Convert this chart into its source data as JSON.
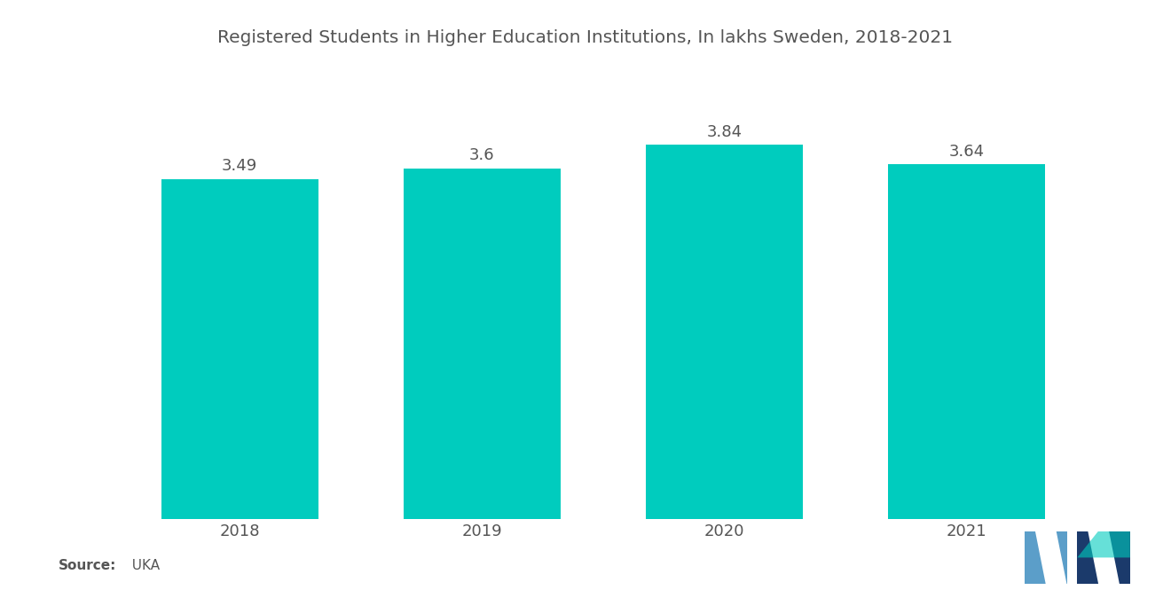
{
  "title": "Registered Students in Higher Education Institutions, In lakhs Sweden, 2018-2021",
  "categories": [
    "2018",
    "2019",
    "2020",
    "2021"
  ],
  "values": [
    3.49,
    3.6,
    3.84,
    3.64
  ],
  "bar_color": "#00CCBE",
  "background_color": "#ffffff",
  "text_color": "#555555",
  "title_fontsize": 14.5,
  "label_fontsize": 13,
  "value_fontsize": 13,
  "source_bold": "Source:",
  "source_normal": "  UKA",
  "ylim": [
    0,
    4.6
  ],
  "bar_width": 0.65
}
